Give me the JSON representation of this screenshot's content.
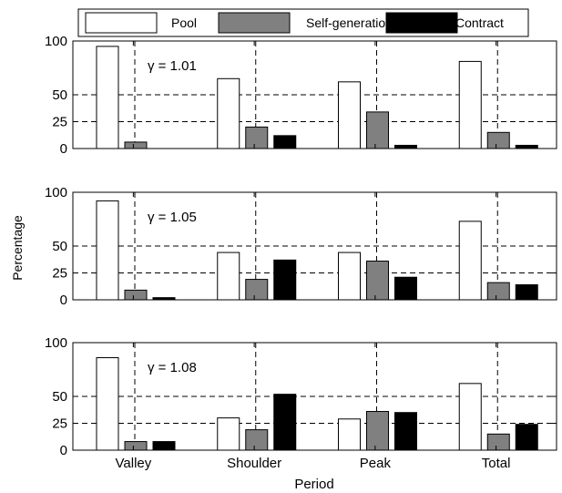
{
  "legend": {
    "position": "top-center",
    "entries": [
      {
        "label": "Pool",
        "color": "#ffffff"
      },
      {
        "label": "Self-generation",
        "color": "#808080"
      },
      {
        "label": "Contract",
        "color": "#000000"
      }
    ]
  },
  "xlabel": "Period",
  "ylabel": "Percentage",
  "chart_data": [
    {
      "type": "bar",
      "annotation": "γ = 1.01",
      "categories": [
        "Valley",
        "Shoulder",
        "Peak",
        "Total"
      ],
      "series": [
        {
          "name": "Pool",
          "values": [
            95,
            65,
            62,
            81
          ]
        },
        {
          "name": "Self-generation",
          "values": [
            6,
            20,
            34,
            15
          ]
        },
        {
          "name": "Contract",
          "values": [
            0,
            12,
            3,
            3
          ]
        }
      ],
      "yticks": [
        0,
        25,
        50,
        100
      ],
      "ylim": [
        0,
        100
      ],
      "grid": true
    },
    {
      "type": "bar",
      "annotation": "γ = 1.05",
      "categories": [
        "Valley",
        "Shoulder",
        "Peak",
        "Total"
      ],
      "series": [
        {
          "name": "Pool",
          "values": [
            92,
            44,
            44,
            73
          ]
        },
        {
          "name": "Self-generation",
          "values": [
            9,
            19,
            36,
            16
          ]
        },
        {
          "name": "Contract",
          "values": [
            2,
            37,
            21,
            14
          ]
        }
      ],
      "yticks": [
        0,
        25,
        50,
        100
      ],
      "ylim": [
        0,
        100
      ],
      "grid": true
    },
    {
      "type": "bar",
      "annotation": "γ = 1.08",
      "categories": [
        "Valley",
        "Shoulder",
        "Peak",
        "Total"
      ],
      "series": [
        {
          "name": "Pool",
          "values": [
            86,
            30,
            29,
            62
          ]
        },
        {
          "name": "Self-generation",
          "values": [
            8,
            19,
            36,
            15
          ]
        },
        {
          "name": "Contract",
          "values": [
            8,
            52,
            35,
            24
          ]
        }
      ],
      "yticks": [
        0,
        25,
        50,
        100
      ],
      "ylim": [
        0,
        100
      ],
      "grid": true
    }
  ]
}
